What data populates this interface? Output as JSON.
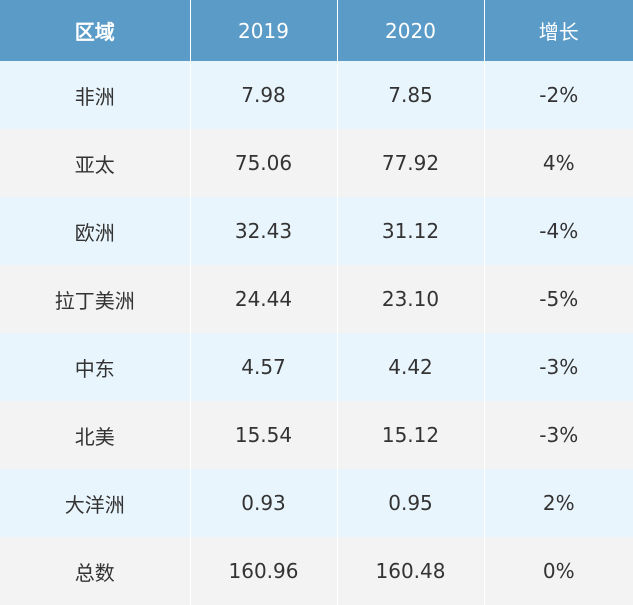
{
  "chart_data": {
    "type": "table",
    "columns": [
      "区域",
      "2019",
      "2020",
      "增长"
    ],
    "rows": [
      [
        "非洲",
        "7.98",
        "7.85",
        "-2%"
      ],
      [
        "亚太",
        "75.06",
        "77.92",
        "4%"
      ],
      [
        "欧洲",
        "32.43",
        "31.12",
        "-4%"
      ],
      [
        "拉丁美洲",
        "24.44",
        "23.10",
        "-5%"
      ],
      [
        "中东",
        "4.57",
        "4.42",
        "-3%"
      ],
      [
        "北美",
        "15.54",
        "15.12",
        "-3%"
      ],
      [
        "大洋洲",
        "0.93",
        "0.95",
        "2%"
      ],
      [
        "总数",
        "160.96",
        "160.48",
        "0%"
      ]
    ]
  },
  "colors": {
    "header_bg": "#5b9bc8",
    "row_odd_bg": "#e9f5fd",
    "row_even_bg": "#f3f3f3",
    "text": "#333333"
  }
}
